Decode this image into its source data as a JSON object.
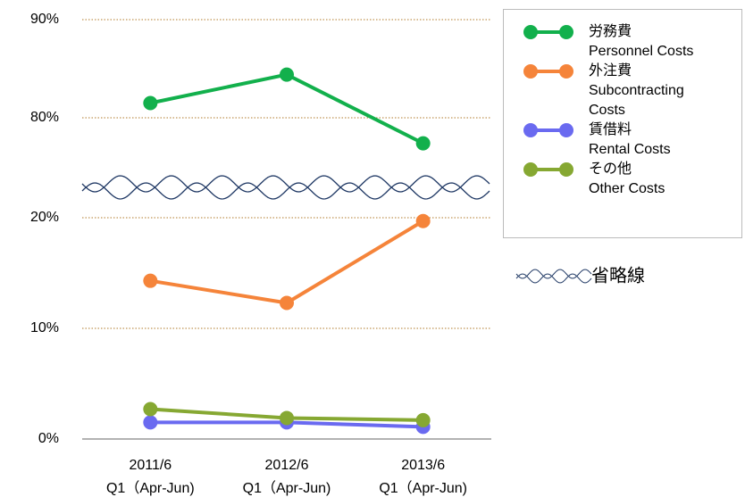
{
  "chart_data": {
    "type": "line",
    "categories": [
      "2011/6",
      "2012/6",
      "2013/6"
    ],
    "category_sublabels": [
      "Q1（Apr-Jun)",
      "Q1（Apr-Jun)",
      "Q1（Apr-Jun)"
    ],
    "series": [
      {
        "name": "労務費",
        "name_en": "Personnel Costs",
        "color": "#12b04c",
        "values": [
          81.5,
          84.4,
          77.4
        ]
      },
      {
        "name": "外注費",
        "name_en": "Subcontracting Costs",
        "color": "#f5843a",
        "values": [
          14.3,
          12.3,
          19.7
        ]
      },
      {
        "name": "賃借料",
        "name_en": "Rental Costs",
        "color": "#6a6af0",
        "values": [
          1.5,
          1.5,
          1.1
        ]
      },
      {
        "name": "その他",
        "name_en": "Other Costs",
        "color": "#86a832",
        "values": [
          2.7,
          1.9,
          1.7
        ]
      }
    ],
    "ylim": [
      0,
      90
    ],
    "axis_break": [
      20,
      80
    ],
    "axis_break_label": "省略線",
    "yticks": [
      {
        "value": 0,
        "label": "0%"
      },
      {
        "value": 10,
        "label": "10%"
      },
      {
        "value": 20,
        "label": "20%"
      },
      {
        "value": 80,
        "label": "80%"
      },
      {
        "value": 90,
        "label": "90%"
      }
    ],
    "grid": true,
    "legend": "upper right"
  }
}
